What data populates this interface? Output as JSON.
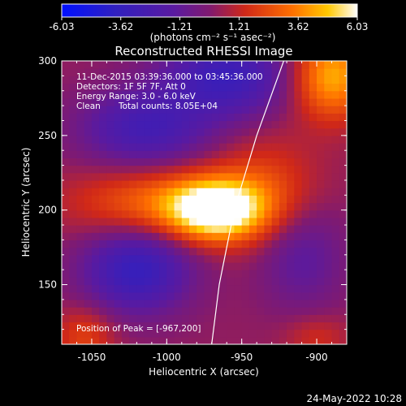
{
  "chart_data": {
    "type": "heatmap",
    "title": "Reconstructed RHESSI Image",
    "xlabel": "Heliocentric X (arcsec)",
    "ylabel": "Heliocentric Y (arcsec)",
    "xlim": [
      -1070,
      -880
    ],
    "ylim": [
      110,
      300
    ],
    "x_ticks": [
      -1050,
      -1000,
      -950,
      -900
    ],
    "y_ticks": [
      150,
      200,
      250,
      300
    ],
    "colorbar": {
      "min": -6.03,
      "max": 6.03,
      "ticks": [
        "-6.03",
        "-3.62",
        "-1.21",
        "1.21",
        "3.62",
        "6.03"
      ],
      "units_label": "(photons cm⁻² s⁻¹ asec⁻²)",
      "colormap": [
        "#0000ff",
        "#3a1a8c",
        "#6a1fa6",
        "#c03030",
        "#ff6a00",
        "#ffd000",
        "#ffffff"
      ]
    },
    "annotations": {
      "time_range": "11-Dec-2015 03:39:36.000 to 03:45:36.000",
      "detectors": "Detectors: 1F 5F 7F, Att 0",
      "energy": "Energy Range: 3.0 - 6.0 keV",
      "clean": "Clean",
      "counts": "Total counts: 8.05E+04",
      "peak": "Position of Peak = [-967,200]"
    },
    "peak": {
      "x": -967,
      "y": 200,
      "value": 6.03
    },
    "limb_line": [
      [
        -922,
        300
      ],
      [
        -940,
        250
      ],
      [
        -955,
        200
      ],
      [
        -965,
        150
      ],
      [
        -970,
        110
      ]
    ],
    "grid": false,
    "legend": "none"
  },
  "footer": {
    "date": "24-May-2022 10:28"
  }
}
